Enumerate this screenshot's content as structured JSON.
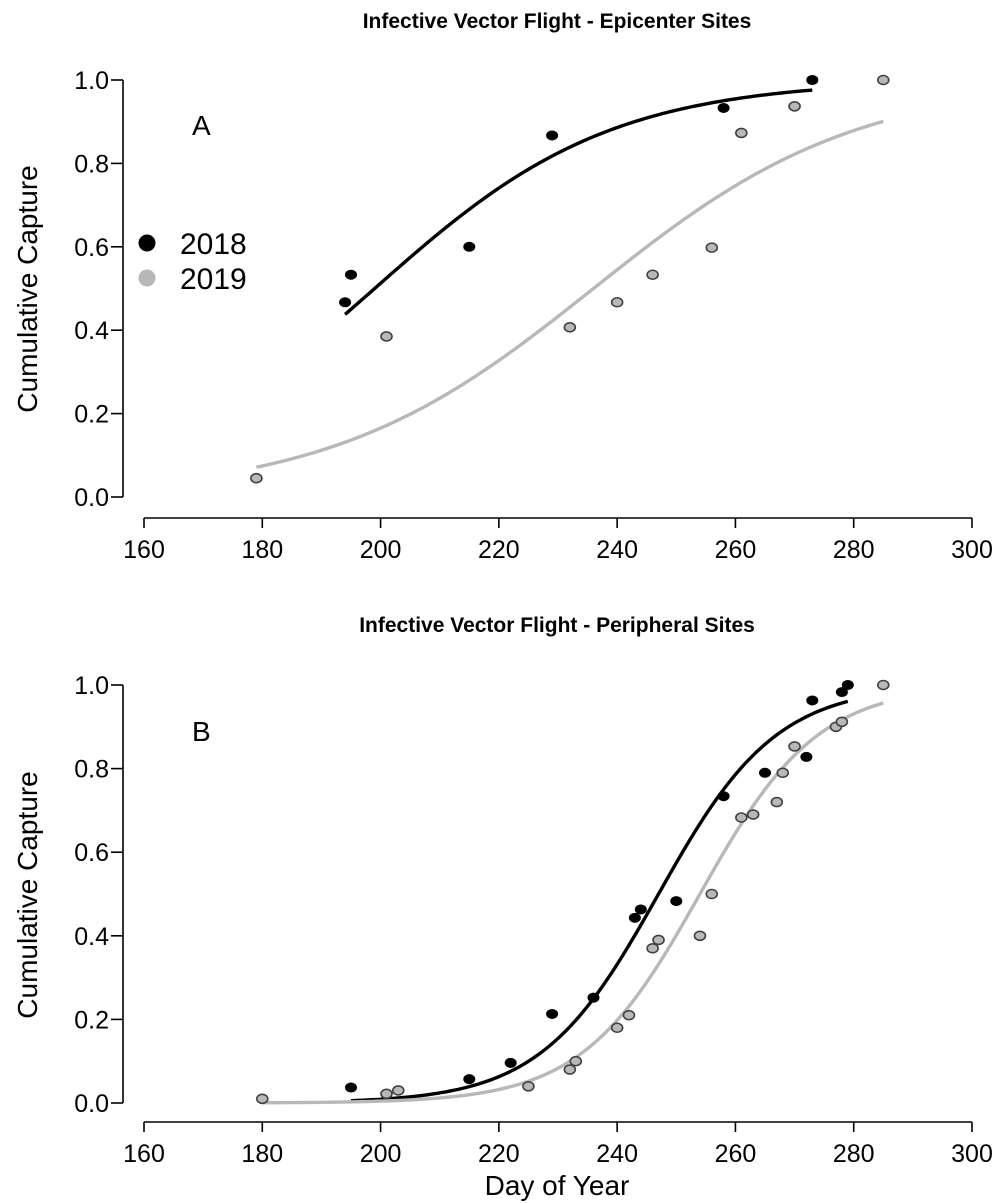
{
  "colors": {
    "series_2018": "#000000",
    "series_2019": "#b8b8b8",
    "point_2019_fill": "#b8b8b8",
    "point_2019_stroke": "#404040",
    "background": "#ffffff"
  },
  "legend": {
    "items": [
      {
        "label": "2018"
      },
      {
        "label": "2019"
      }
    ]
  },
  "chart_data": [
    {
      "type": "scatter",
      "title": "Infective Vector Flight - Epicenter Sites",
      "panel_label": "A",
      "ylabel": "Cumulative Capture",
      "xlabel": "",
      "xlim": [
        160,
        300
      ],
      "ylim": [
        0,
        1
      ],
      "xticks": [
        "160",
        "180",
        "200",
        "220",
        "240",
        "260",
        "280",
        "300"
      ],
      "yticks": [
        "0.0",
        "0.2",
        "0.4",
        "0.6",
        "0.8",
        "1.0"
      ],
      "legend_position": "left",
      "series": [
        {
          "name": "2018",
          "points": [
            [
              194,
              0.467
            ],
            [
              195,
              0.533
            ],
            [
              215,
              0.6
            ],
            [
              229,
              0.867
            ],
            [
              258,
              0.933
            ],
            [
              273,
              1.0
            ]
          ],
          "fit": {
            "x0": 199,
            "k": 0.05,
            "range": [
              194,
              273
            ]
          }
        },
        {
          "name": "2019",
          "points": [
            [
              179,
              0.045
            ],
            [
              201,
              0.385
            ],
            [
              232,
              0.407
            ],
            [
              240,
              0.467
            ],
            [
              246,
              0.533
            ],
            [
              256,
              0.598
            ],
            [
              261,
              0.873
            ],
            [
              270,
              0.937
            ],
            [
              285,
              1.0
            ]
          ],
          "fit": {
            "x0": 236,
            "k": 0.045,
            "range": [
              179,
              285
            ]
          }
        }
      ]
    },
    {
      "type": "scatter",
      "title": "Infective Vector Flight - Peripheral Sites",
      "panel_label": "B",
      "ylabel": "Cumulative Capture",
      "xlabel": "Day of Year",
      "xlim": [
        160,
        300
      ],
      "ylim": [
        0,
        1
      ],
      "xticks": [
        "160",
        "180",
        "200",
        "220",
        "240",
        "260",
        "280",
        "300"
      ],
      "yticks": [
        "0.0",
        "0.2",
        "0.4",
        "0.6",
        "0.8",
        "1.0"
      ],
      "series": [
        {
          "name": "2018",
          "points": [
            [
              195,
              0.037
            ],
            [
              215,
              0.057
            ],
            [
              222,
              0.096
            ],
            [
              229,
              0.213
            ],
            [
              236,
              0.252
            ],
            [
              243,
              0.443
            ],
            [
              244,
              0.463
            ],
            [
              250,
              0.483
            ],
            [
              258,
              0.734
            ],
            [
              265,
              0.79
            ],
            [
              272,
              0.828
            ],
            [
              273,
              0.963
            ],
            [
              278,
              0.983
            ],
            [
              279,
              1.0
            ]
          ],
          "fit": {
            "x0": 247,
            "k": 0.1,
            "range": [
              195,
              279
            ]
          }
        },
        {
          "name": "2019",
          "points": [
            [
              180,
              0.01
            ],
            [
              201,
              0.022
            ],
            [
              203,
              0.03
            ],
            [
              225,
              0.04
            ],
            [
              232,
              0.08
            ],
            [
              233,
              0.1
            ],
            [
              240,
              0.18
            ],
            [
              242,
              0.21
            ],
            [
              246,
              0.37
            ],
            [
              247,
              0.39
            ],
            [
              254,
              0.4
            ],
            [
              256,
              0.5
            ],
            [
              261,
              0.683
            ],
            [
              263,
              0.69
            ],
            [
              267,
              0.72
            ],
            [
              268,
              0.79
            ],
            [
              270,
              0.853
            ],
            [
              277,
              0.9
            ],
            [
              278,
              0.912
            ],
            [
              285,
              1.0
            ]
          ],
          "fit": {
            "x0": 254,
            "k": 0.1,
            "range": [
              180,
              285
            ]
          }
        }
      ]
    }
  ]
}
